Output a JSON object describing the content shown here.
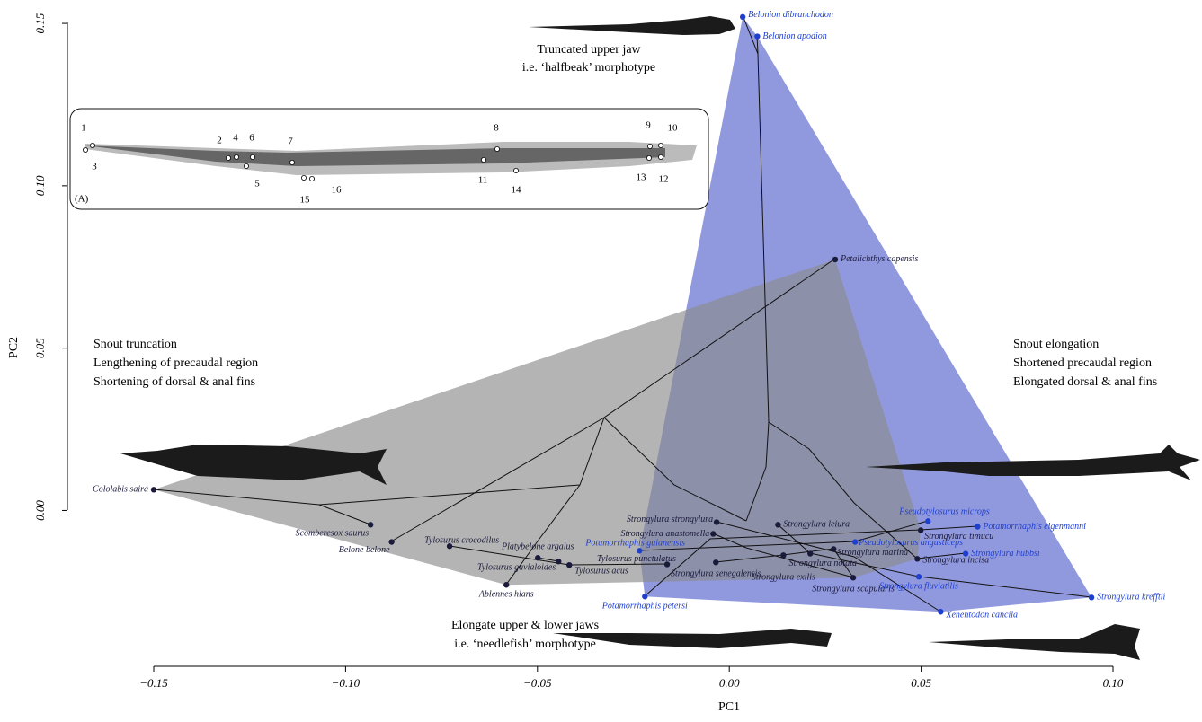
{
  "chart_data": {
    "type": "scatter",
    "x_label": "PC1",
    "y_label": "PC2",
    "xlim": [
      -0.15,
      0.1
    ],
    "ylim": [
      -0.048,
      0.155
    ],
    "xticks": [
      {
        "value": -0.15,
        "label": "−0.15"
      },
      {
        "value": -0.1,
        "label": "−0.10"
      },
      {
        "value": -0.05,
        "label": "−0.05"
      },
      {
        "value": 0,
        "label": "0.00"
      },
      {
        "value": 0.05,
        "label": "0.05"
      },
      {
        "value": 0.1,
        "label": "0.10"
      }
    ],
    "yticks": [
      {
        "value": 0,
        "label": "0.00"
      },
      {
        "value": 0.05,
        "label": "0.05"
      },
      {
        "value": 0.1,
        "label": "0.10"
      },
      {
        "value": 0.15,
        "label": "0.15"
      }
    ],
    "points": [
      {
        "label": "Belonion dibranchodon",
        "x": 0.0035,
        "y": 0.152,
        "color": "#1f3fcf"
      },
      {
        "label": "Belonion apodion",
        "x": 0.0073,
        "y": 0.146,
        "color": "#1f3fcf"
      },
      {
        "label": "Petalichthys capensis",
        "x": 0.0276,
        "y": 0.0773,
        "color": "#1a1a3a"
      },
      {
        "label": "Cololabis saira",
        "x": -0.15,
        "y": 0.0064,
        "color": "#1a1a3a"
      },
      {
        "label": "Scomberesox saurus",
        "x": -0.0935,
        "y": -0.0044,
        "color": "#1a1a3a"
      },
      {
        "label": "Belone belone",
        "x": -0.088,
        "y": -0.0097,
        "color": "#1a1a3a"
      },
      {
        "label": "Tylosurus crocodilus",
        "x": -0.0729,
        "y": -0.011,
        "color": "#1a1a3a"
      },
      {
        "label": "Platybelone argalus",
        "x": -0.0499,
        "y": -0.0146,
        "color": "#1a1a3a"
      },
      {
        "label": "Tylosurus gavialoides",
        "x": -0.0445,
        "y": -0.0157,
        "color": "#1a1a3a"
      },
      {
        "label": "Tylosurus acus",
        "x": -0.0417,
        "y": -0.0168,
        "color": "#1a1a3a"
      },
      {
        "label": "Ablennes hians",
        "x": -0.0581,
        "y": -0.0229,
        "color": "#1a1a3a"
      },
      {
        "label": "Tylosurus punctulatus",
        "x": -0.0162,
        "y": -0.0166,
        "color": "#1a1a3a"
      },
      {
        "label": "Potamorrhaphis guianensis",
        "x": -0.0234,
        "y": -0.0124,
        "color": "#1f3fcf"
      },
      {
        "label": "Potamorrhaphis petersi",
        "x": -0.022,
        "y": -0.0265,
        "color": "#1f3fcf"
      },
      {
        "label": "Strongylura strongylura",
        "x": -0.0033,
        "y": -0.0036,
        "color": "#1a1a3a"
      },
      {
        "label": "Strongylura anastomella",
        "x": -0.0042,
        "y": -0.0072,
        "color": "#1a1a3a"
      },
      {
        "label": "Strongylura senegalensis",
        "x": -0.0035,
        "y": -0.016,
        "color": "#1a1a3a"
      },
      {
        "label": "Strongylura exilis",
        "x": 0.0141,
        "y": -0.0138,
        "color": "#1a1a3a"
      },
      {
        "label": "Strongylura notata",
        "x": 0.0211,
        "y": -0.0133,
        "color": "#1a1a3a"
      },
      {
        "label": "Strongylura leiura",
        "x": 0.0127,
        "y": -0.0044,
        "color": "#1a1a3a"
      },
      {
        "label": "Strongylura marina",
        "x": 0.0272,
        "y": -0.0119,
        "color": "#1a1a3a"
      },
      {
        "label": "Strongylura scapularis",
        "x": 0.0323,
        "y": -0.0207,
        "color": "#1a1a3a"
      },
      {
        "label": "Pseudotylosurus angusticeps",
        "x": 0.0328,
        "y": -0.0097,
        "color": "#1f3fcf"
      },
      {
        "label": "Strongylura timucu",
        "x": 0.0499,
        "y": -0.0061,
        "color": "#1a1a3a"
      },
      {
        "label": "Strongylura incisa",
        "x": 0.049,
        "y": -0.0149,
        "color": "#1a1a3a"
      },
      {
        "label": "Pseudotylosurus microps",
        "x": 0.0518,
        "y": -0.0033,
        "color": "#1f3fcf"
      },
      {
        "label": "Potamorrhaphis eigenmanni",
        "x": 0.0647,
        "y": -0.005,
        "color": "#1f3fcf"
      },
      {
        "label": "Strongylura hubbsi",
        "x": 0.0616,
        "y": -0.0133,
        "color": "#1f3fcf"
      },
      {
        "label": "Strongylura fluviatilis",
        "x": 0.0494,
        "y": -0.0204,
        "color": "#1f3fcf"
      },
      {
        "label": "Xenentodon cancila",
        "x": 0.0551,
        "y": -0.0312,
        "color": "#1f3fcf"
      },
      {
        "label": "Strongylura krefftii",
        "x": 0.0944,
        "y": -0.0268,
        "color": "#1f3fcf"
      }
    ],
    "annotations": [
      "Truncated upper jaw",
      "i.e. ‘halfbeak’ morphotype",
      "Snout truncation",
      "Lengthening of precaudal region",
      "Shortening of dorsal & anal fins",
      "Snout elongation",
      "Shortened precaudal region",
      "Elongated dorsal & anal fins",
      "Elongate upper & lower jaws",
      "i.e. ‘needlefish’ morphotype"
    ],
    "inset": {
      "label": "(A)",
      "landmarks": [
        "1",
        "2",
        "3",
        "4",
        "5",
        "6",
        "7",
        "8",
        "9",
        "10",
        "11",
        "12",
        "13",
        "14",
        "15",
        "16"
      ]
    }
  }
}
